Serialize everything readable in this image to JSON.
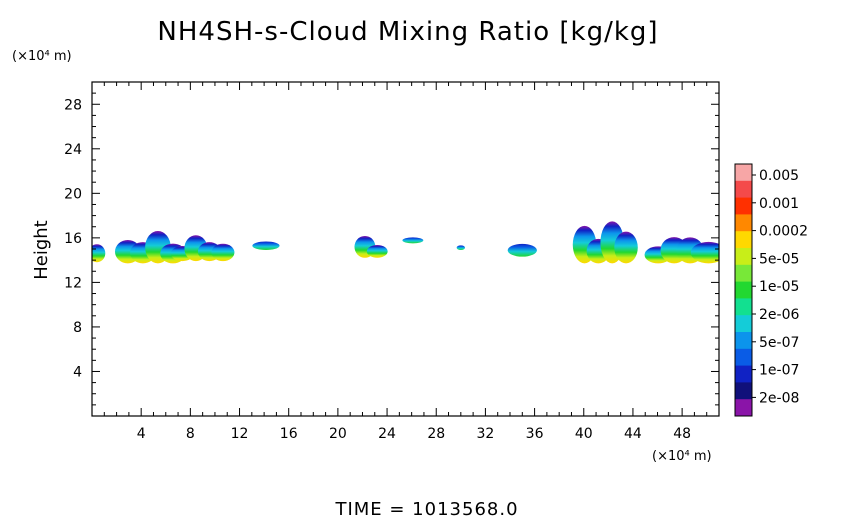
{
  "chart_data": {
    "type": "heatmap",
    "title": "NH4SH-s-Cloud Mixing Ratio [kg/kg]",
    "ylabel": "Height",
    "xlabel": "",
    "x_unit": "(×10⁴ m)",
    "y_unit": "(×10⁴ m)",
    "xlim": [
      0,
      51
    ],
    "ylim": [
      0,
      30
    ],
    "x_ticks": [
      4,
      8,
      12,
      16,
      20,
      24,
      28,
      32,
      36,
      40,
      44,
      48
    ],
    "y_ticks": [
      4,
      8,
      12,
      16,
      20,
      24,
      28
    ],
    "colorbar": {
      "labels": [
        "0.005",
        "0.001",
        "0.0002",
        "5e-05",
        "1e-05",
        "2e-06",
        "5e-07",
        "1e-07",
        "2e-08"
      ],
      "colors": [
        "#f7a6a6",
        "#f44a4a",
        "#ff3000",
        "#ff8800",
        "#ffd800",
        "#c8ee18",
        "#78e838",
        "#22d830",
        "#12e090",
        "#14ccd8",
        "#0c94ec",
        "#0a5ce6",
        "#1022c4",
        "#10107a",
        "#8a14a8"
      ]
    },
    "clouds": [
      {
        "x": [
          0.0,
          0.8
        ],
        "y": [
          13.9,
          15.4
        ],
        "peak": "5e-05"
      },
      {
        "x": [
          2.3,
          7.2
        ],
        "y": [
          13.8,
          16.5
        ],
        "peak": "0.0002"
      },
      {
        "x": [
          6.8,
          11.2
        ],
        "y": [
          14.0,
          16.2
        ],
        "peak": "5e-05"
      },
      {
        "x": [
          13.5,
          14.8
        ],
        "y": [
          15.0,
          15.8
        ],
        "peak": "1e-05"
      },
      {
        "x": [
          21.7,
          23.7
        ],
        "y": [
          14.3,
          16.2
        ],
        "peak": "5e-05"
      },
      {
        "x": [
          25.6,
          26.6
        ],
        "y": [
          15.6,
          16.4
        ],
        "peak": "5e-07"
      },
      {
        "x": [
          29.8,
          30.2
        ],
        "y": [
          15.0,
          15.6
        ],
        "peak": "2e-06"
      },
      {
        "x": [
          34.3,
          35.7
        ],
        "y": [
          14.4,
          15.5
        ],
        "peak": "1e-05"
      },
      {
        "x": [
          39.5,
          44.0
        ],
        "y": [
          13.8,
          17.4
        ],
        "peak": "5e-05"
      },
      {
        "x": [
          45.4,
          49.3
        ],
        "y": [
          13.8,
          16.3
        ],
        "peak": "0.0002"
      },
      {
        "x": [
          49.3,
          51.0
        ],
        "y": [
          13.8,
          16.2
        ],
        "peak": "5e-05"
      }
    ]
  },
  "footer": {
    "time_label": "TIME = 1013568.0"
  }
}
